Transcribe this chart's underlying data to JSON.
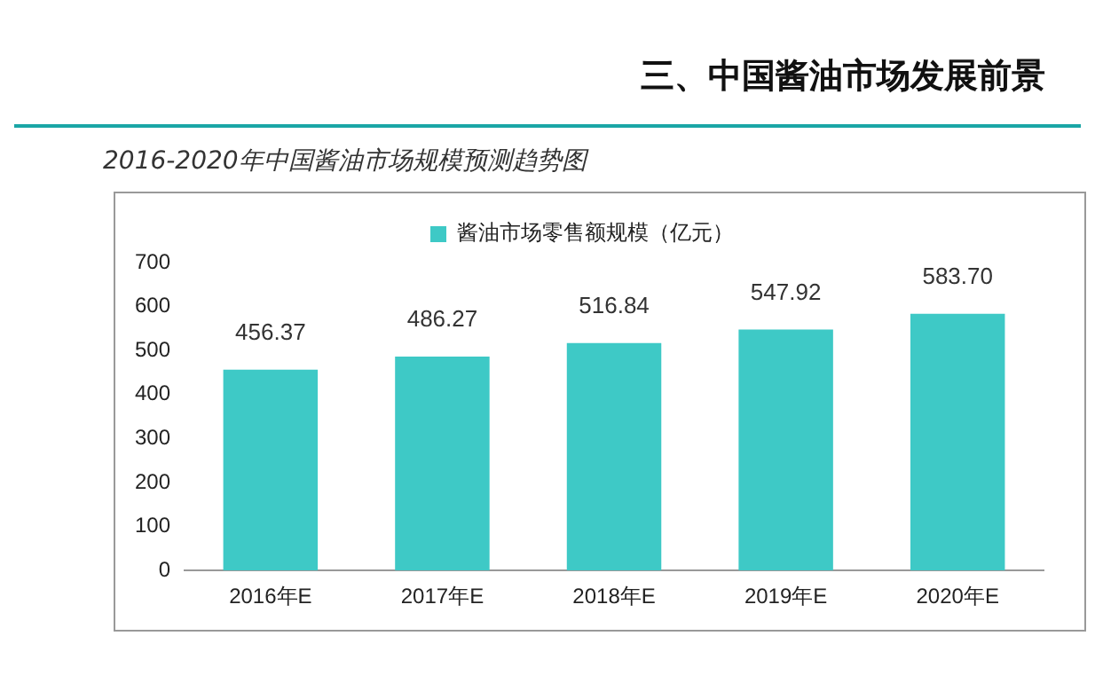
{
  "chart_data": {
    "type": "bar",
    "title": "三、中国酱油市场发展前景",
    "subtitle": "2016-2020年中国酱油市场规模预测趋势图",
    "categories": [
      "2016年E",
      "2017年E",
      "2018年E",
      "2019年E",
      "2020年E"
    ],
    "series": [
      {
        "name": "酱油市场零售额规模（亿元）",
        "color": "#3ec9c6",
        "values": [
          456.37,
          486.27,
          516.84,
          547.92,
          583.7
        ],
        "value_labels": [
          "456.37",
          "486.27",
          "516.84",
          "547.92",
          "583.70"
        ]
      }
    ],
    "ylim": [
      0,
      700
    ],
    "yticks": [
      0,
      100,
      200,
      300,
      400,
      500,
      600,
      700
    ],
    "grid": false,
    "legend": "top"
  }
}
